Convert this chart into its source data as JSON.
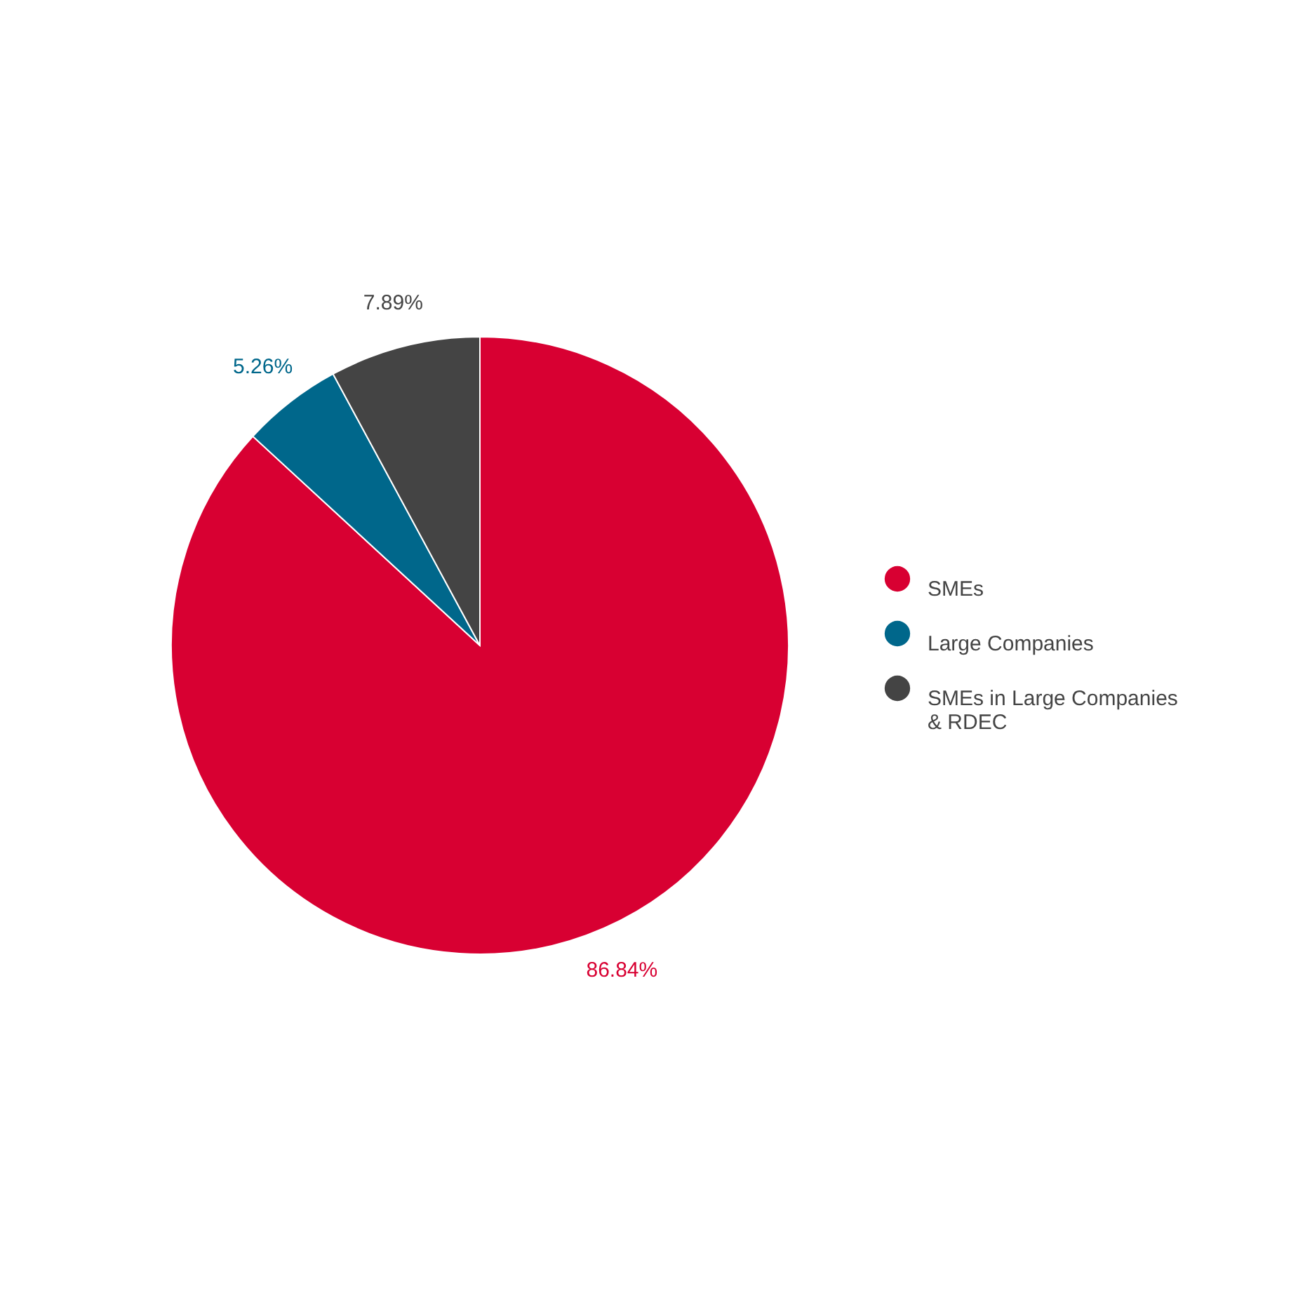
{
  "chart_data": {
    "type": "pie",
    "categories": [
      "SMEs",
      "Large Companies",
      "SMEs in Large Companies & RDEC"
    ],
    "values": [
      86.84,
      5.26,
      7.89
    ],
    "colors": [
      "#d80032",
      "#00678b",
      "#444444"
    ],
    "value_labels": [
      "86.84%",
      "5.26%",
      "7.89%"
    ],
    "legend": "right"
  }
}
